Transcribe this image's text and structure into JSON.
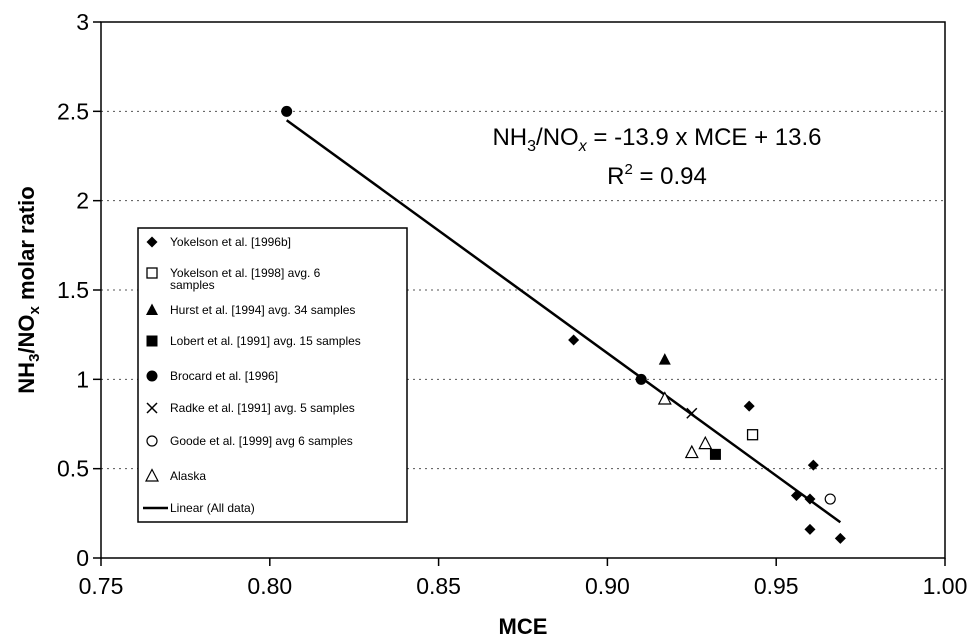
{
  "chart_data": {
    "type": "scatter",
    "title": "",
    "xlabel": "MCE",
    "ylabel": "NH3/NOx molar ratio",
    "ylabel_parts": {
      "a": "NH",
      "a_sub": "3",
      "b": "/NO",
      "b_sub": "x",
      "c": " molar ratio"
    },
    "xlim": [
      0.75,
      1.0
    ],
    "ylim": [
      0,
      3
    ],
    "x_ticks": [
      "0.75",
      "0.80",
      "0.85",
      "0.90",
      "0.95",
      "1.00"
    ],
    "y_ticks": [
      "0",
      "0.5",
      "1",
      "1.5",
      "2",
      "2.5",
      "3"
    ],
    "grid": "horizontal-dotted",
    "legend_position": "left-center",
    "series": [
      {
        "name": "Yokelson et al. [1996b]",
        "marker": "diamond-filled",
        "points": [
          [
            0.89,
            1.22
          ],
          [
            0.942,
            0.85
          ],
          [
            0.961,
            0.52
          ],
          [
            0.956,
            0.35
          ],
          [
            0.96,
            0.33
          ],
          [
            0.96,
            0.16
          ],
          [
            0.969,
            0.11
          ]
        ]
      },
      {
        "name": "Yokelson et al. [1998] avg. 6 samples",
        "marker": "square-open",
        "points": [
          [
            0.943,
            0.69
          ]
        ]
      },
      {
        "name": "Hurst et al. [1994] avg. 34 samples",
        "marker": "triangle-filled",
        "points": [
          [
            0.917,
            1.11
          ]
        ]
      },
      {
        "name": "Lobert et al. [1991] avg. 15 samples",
        "marker": "square-filled",
        "points": [
          [
            0.932,
            0.58
          ]
        ]
      },
      {
        "name": "Brocard et al. [1996]",
        "marker": "circle-filled",
        "points": [
          [
            0.805,
            2.5
          ],
          [
            0.91,
            1.0
          ]
        ]
      },
      {
        "name": "Radke et al. [1991] avg. 5 samples",
        "marker": "x",
        "points": [
          [
            0.925,
            0.81
          ]
        ]
      },
      {
        "name": "Goode et al. [1999] avg  6 samples",
        "marker": "circle-open",
        "points": [
          [
            0.966,
            0.33
          ]
        ]
      },
      {
        "name": "Alaska",
        "marker": "triangle-open",
        "points": [
          [
            0.917,
            0.89
          ],
          [
            0.925,
            0.59
          ],
          [
            0.929,
            0.64
          ]
        ]
      },
      {
        "name": "Linear (All data)",
        "marker": "line",
        "points": [
          [
            0.805,
            2.45
          ],
          [
            0.969,
            0.2
          ]
        ]
      }
    ],
    "annotation": {
      "line1": {
        "a": "NH",
        "a_sub": "3",
        "b": "/NO",
        "b_sub": "x",
        "c": " = -13.9 x MCE + 13.6"
      },
      "line2": {
        "a": "R",
        "a_sup": "2",
        "b": " = 0.94"
      }
    }
  }
}
